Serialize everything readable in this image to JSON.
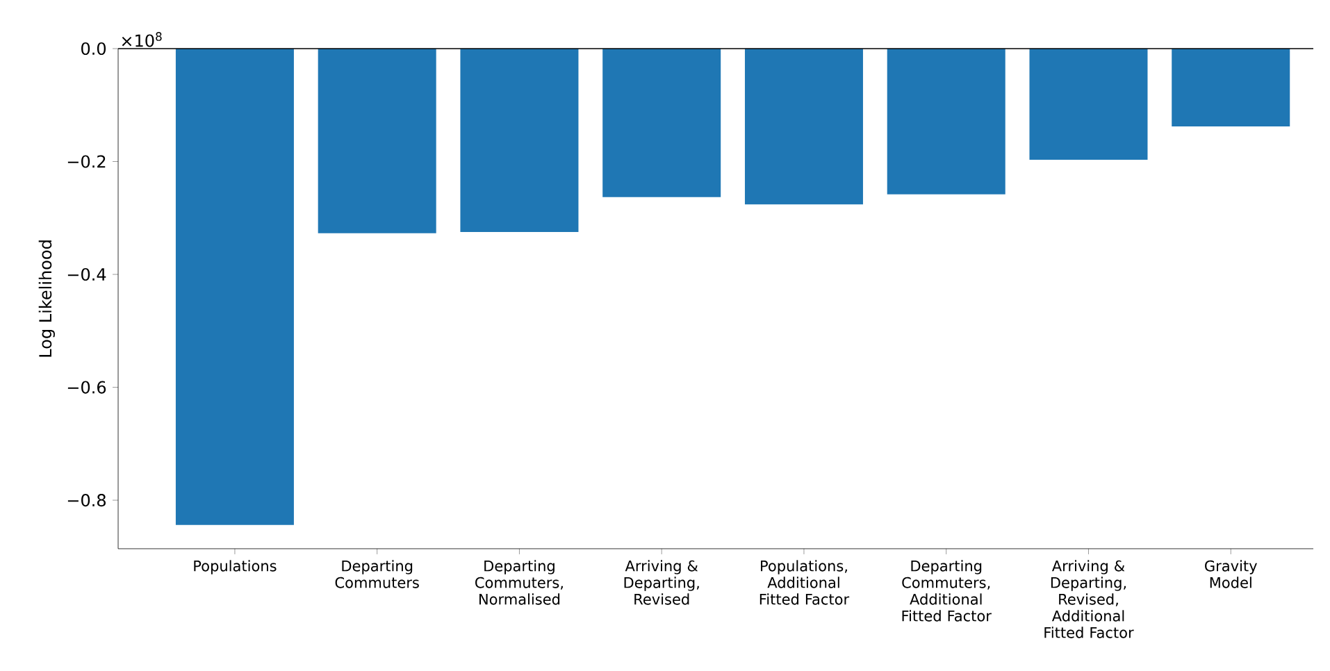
{
  "chart_data": {
    "type": "bar",
    "ylabel": "Log Likelihood",
    "categories": [
      "Populations",
      "Departing Commuters",
      "Departing Commuters, Normalised",
      "Arriving & Departing, Revised",
      "Populations, Additional Fitted Factor",
      "Departing Commuters, Additional Fitted Factor",
      "Arriving & Departing, Revised, Additional Fitted Factor",
      "Gravity Model"
    ],
    "values": [
      -0.844,
      -0.327,
      -0.325,
      -0.263,
      -0.276,
      -0.258,
      -0.197,
      -0.138
    ],
    "color": "#1f77b4",
    "ylim": [
      -0.886,
      0
    ],
    "yticks": [
      {
        "value": -0.8,
        "label": "−0.8"
      },
      {
        "value": -0.6,
        "label": "−0.6"
      },
      {
        "value": -0.4,
        "label": "−0.4"
      },
      {
        "value": -0.2,
        "label": "−0.2"
      },
      {
        "value": 0,
        "label": "0.0"
      }
    ],
    "annotations": [
      "×10$^{8}$"
    ],
    "grid": false
  }
}
